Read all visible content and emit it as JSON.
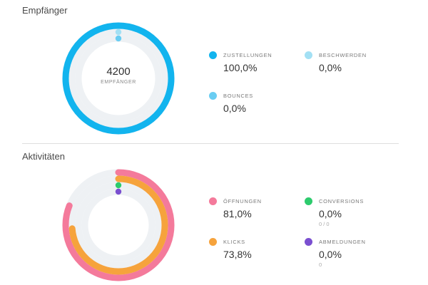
{
  "sections": {
    "recipients": {
      "title": "Empfänger",
      "center_value": "4200",
      "center_label": "EMPFÄNGER",
      "stats": [
        {
          "label": "ZUSTELLUNGEN",
          "value": "100,0%",
          "color": "#12b4ee",
          "fraction": 1.0
        },
        {
          "label": "BESCHWERDEN",
          "value": "0,0%",
          "color": "#a3e0f4",
          "fraction": 0.0
        },
        {
          "label": "BOUNCES",
          "value": "0,0%",
          "color": "#6acdf2",
          "fraction": 0.0
        }
      ]
    },
    "activities": {
      "title": "Aktivitäten",
      "stats": [
        {
          "label": "ÖFFNUNGEN",
          "value": "81,0%",
          "color": "#f47a9b",
          "fraction": 0.81
        },
        {
          "label": "CONVERSIONS",
          "value": "0,0%",
          "sub": "0 / 0",
          "color": "#2dcb6d",
          "fraction": 0.0
        },
        {
          "label": "KLICKS",
          "value": "73,8%",
          "color": "#f6a33c",
          "fraction": 0.738
        },
        {
          "label": "ABMELDUNGEN",
          "value": "0,0%",
          "sub": "0",
          "color": "#7a4fd0",
          "fraction": 0.0
        }
      ]
    }
  },
  "colors": {
    "track": "#eef1f4"
  }
}
